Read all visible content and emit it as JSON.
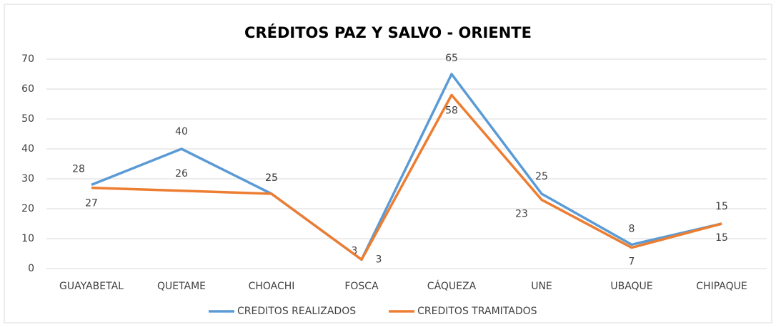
{
  "chart_data": {
    "type": "line",
    "title": "CRÉDITOS PAZ Y SALVO - ORIENTE",
    "categories": [
      "GUAYABETAL",
      "QUETAME",
      "CHOACHI",
      "FOSCA",
      "CÁQUEZA",
      "UNE",
      "UBAQUE",
      "CHIPAQUE"
    ],
    "series": [
      {
        "name": "CREDITOS REALIZADOS",
        "color": "#5b9bd5",
        "values": [
          28,
          40,
          25,
          3,
          65,
          25,
          8,
          15
        ]
      },
      {
        "name": "CREDITOS TRAMITADOS",
        "color": "#ed7d31",
        "values": [
          27,
          26,
          25,
          3,
          58,
          23,
          7,
          15
        ]
      }
    ],
    "ylim": [
      0,
      70
    ],
    "yticks": [
      0,
      10,
      20,
      30,
      40,
      50,
      60,
      70
    ],
    "grid": true,
    "legend": "bottom"
  }
}
